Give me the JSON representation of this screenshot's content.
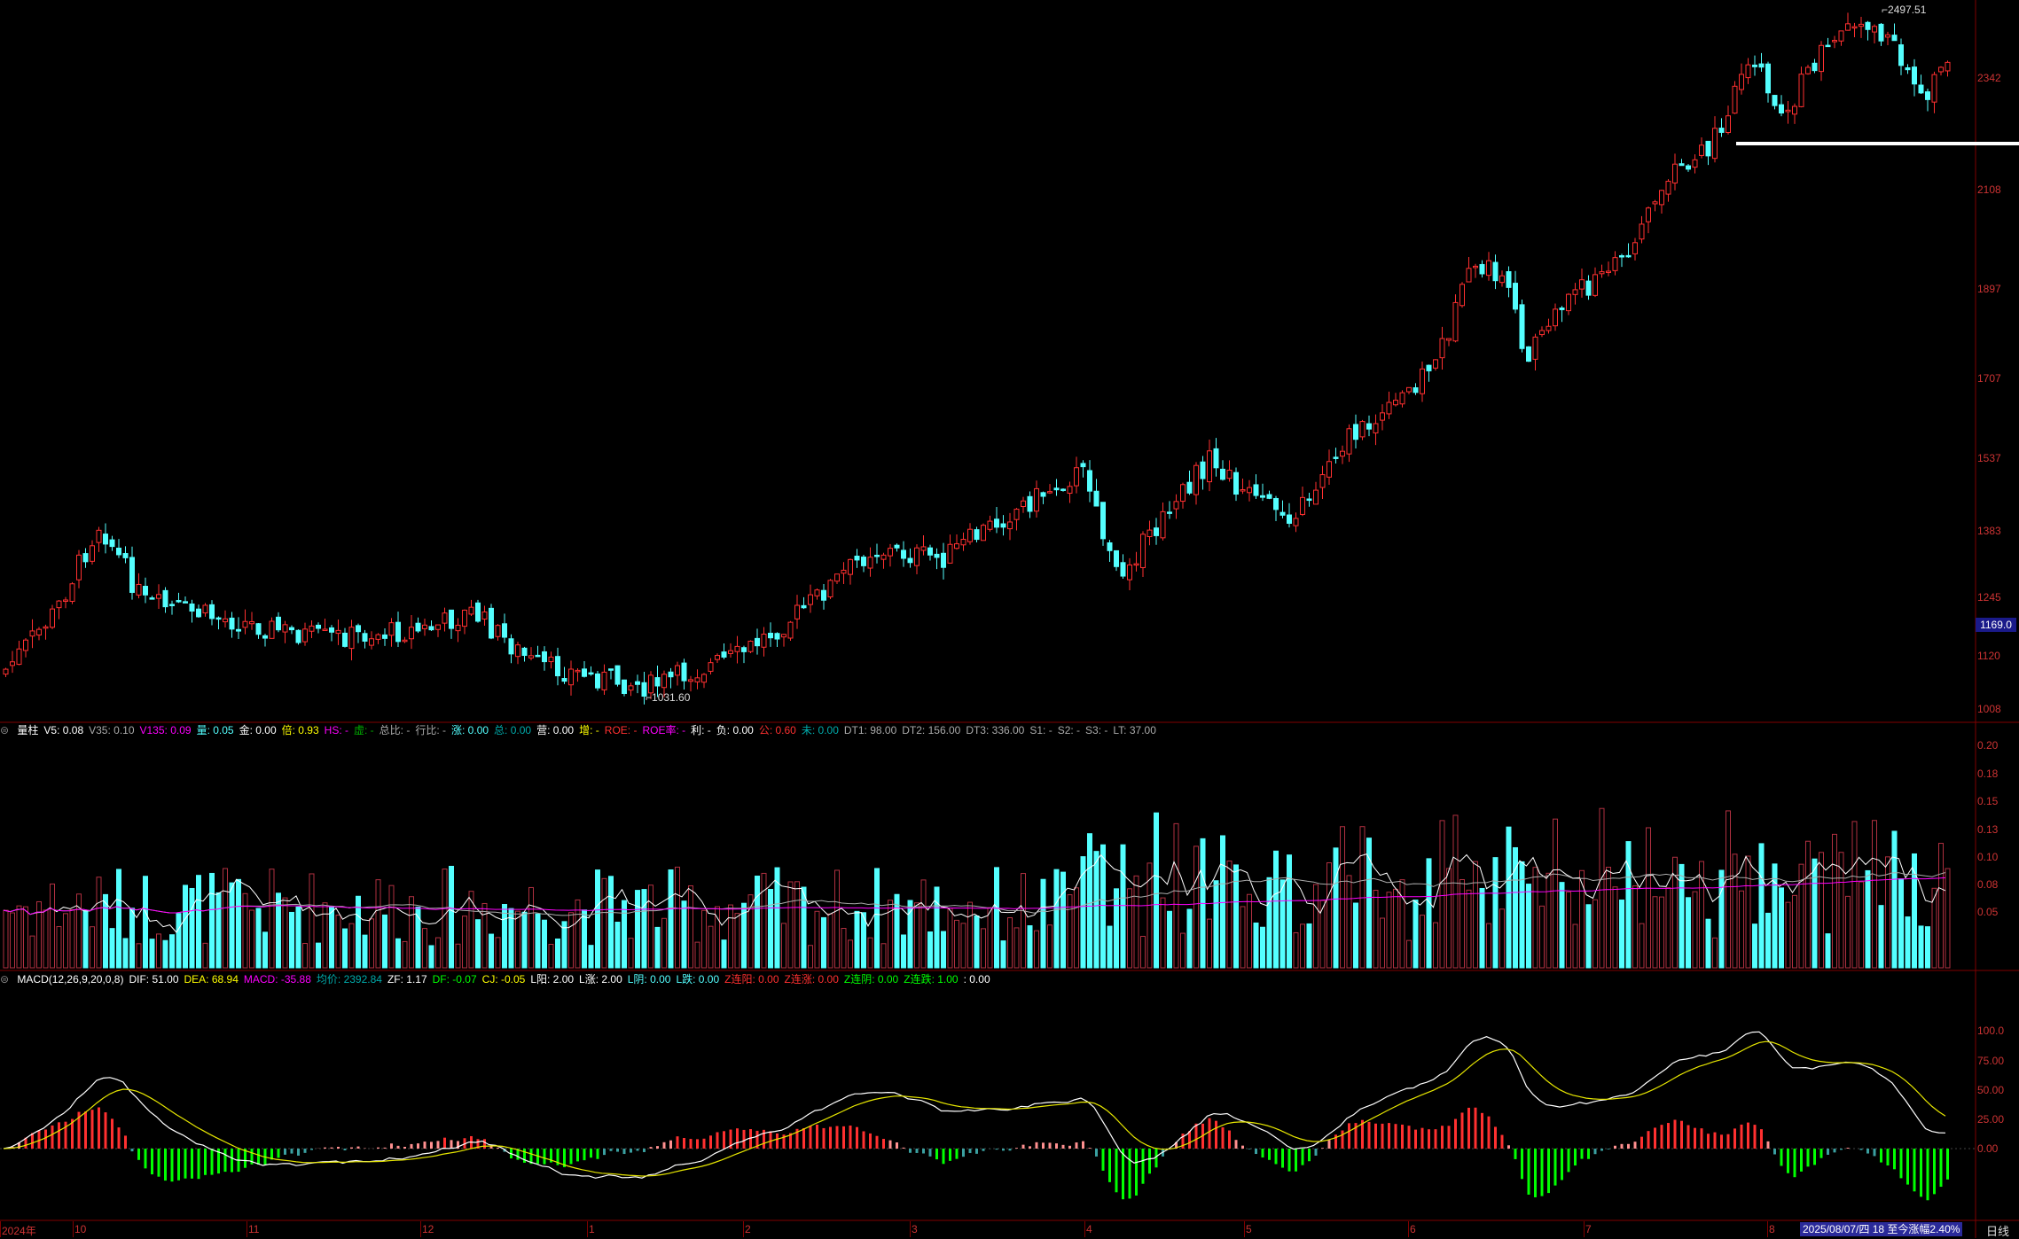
{
  "colors": {
    "up": "#ff3030",
    "down": "#54ffff",
    "ma_white": "#ffffff",
    "ma_yellow": "#e6e600",
    "ma_magenta": "#ff00ff",
    "grid": "#800000",
    "axis_text": "#cc3333",
    "background": "#000000"
  },
  "price_panel": {
    "high_label": "2497.51",
    "low_label": "1031.60",
    "current_price_tag": "1169.0",
    "y_ticks": [
      "2342",
      "2108",
      "1897",
      "1707",
      "1537",
      "1383",
      "1245",
      "1120",
      "1008"
    ]
  },
  "volume_panel": {
    "indicator_items": [
      {
        "label": "量柱",
        "color": "#ffffff"
      },
      {
        "label": "V5: 0.08",
        "color": "#ffffff"
      },
      {
        "label": "V35: 0.10",
        "color": "#aaaaaa"
      },
      {
        "label": "V135: 0.09",
        "color": "#ff00ff"
      },
      {
        "label": "量: 0.05",
        "color": "#54ffff"
      },
      {
        "label": "金: 0.00",
        "color": "#ffffff"
      },
      {
        "label": "倍: 0.93",
        "color": "#ffff00"
      },
      {
        "label": "HS: -",
        "color": "#ff00ff"
      },
      {
        "label": "虚: -",
        "color": "#00aa00"
      },
      {
        "label": "总比: -",
        "color": "#aaaaaa"
      },
      {
        "label": "行比: -",
        "color": "#aaaaaa"
      },
      {
        "label": "涨: 0.00",
        "color": "#54ffff"
      },
      {
        "label": "总: 0.00",
        "color": "#00aaaa"
      },
      {
        "label": "营: 0.00",
        "color": "#ffffff"
      },
      {
        "label": "增: -",
        "color": "#ffff00"
      },
      {
        "label": "ROE: -",
        "color": "#ff3030"
      },
      {
        "label": "ROE率: -",
        "color": "#ff00ff"
      },
      {
        "label": "利: -",
        "color": "#ffffff"
      },
      {
        "label": "负: 0.00",
        "color": "#ffffff"
      },
      {
        "label": "公: 0.60",
        "color": "#ff3030"
      },
      {
        "label": "未: 0.00",
        "color": "#00aaaa"
      },
      {
        "label": "DT1: 98.00",
        "color": "#aaaaaa"
      },
      {
        "label": "DT2: 156.00",
        "color": "#aaaaaa"
      },
      {
        "label": "DT3: 336.00",
        "color": "#aaaaaa"
      },
      {
        "label": "S1: -",
        "color": "#aaaaaa"
      },
      {
        "label": "S2: -",
        "color": "#aaaaaa"
      },
      {
        "label": "S3: -",
        "color": "#aaaaaa"
      },
      {
        "label": "LT: 37.00",
        "color": "#aaaaaa"
      }
    ],
    "y_ticks": [
      "0.20",
      "0.18",
      "0.15",
      "0.13",
      "0.10",
      "0.08",
      "0.05"
    ]
  },
  "macd_panel": {
    "indicator_items": [
      {
        "label": "MACD(12,26,9,20,0,8)",
        "color": "#ffffff"
      },
      {
        "label": "DIF: 51.00",
        "color": "#ffffff"
      },
      {
        "label": "DEA: 68.94",
        "color": "#ffff00"
      },
      {
        "label": "MACD: -35.88",
        "color": "#ff00ff"
      },
      {
        "label": "均价: 2392.84",
        "color": "#00aaaa"
      },
      {
        "label": "ZF: 1.17",
        "color": "#ffffff"
      },
      {
        "label": "DF: -0.07",
        "color": "#00ff00"
      },
      {
        "label": "CJ: -0.05",
        "color": "#ffff00"
      },
      {
        "label": "L阳: 2.00",
        "color": "#ffffff"
      },
      {
        "label": "L涨: 2.00",
        "color": "#ffffff"
      },
      {
        "label": "L阴: 0.00",
        "color": "#54ffff"
      },
      {
        "label": "L跌: 0.00",
        "color": "#54ffff"
      },
      {
        "label": "Z连阳: 0.00",
        "color": "#ff3030"
      },
      {
        "label": "Z连涨: 0.00",
        "color": "#ff3030"
      },
      {
        "label": "Z连阴: 0.00",
        "color": "#00ff00"
      },
      {
        "label": "Z连跌: 1.00",
        "color": "#00ff00"
      },
      {
        "label": ": 0.00",
        "color": "#ffffff"
      }
    ],
    "y_ticks": [
      "100.0",
      "75.00",
      "50.00",
      "25.00",
      "0.00"
    ]
  },
  "time_axis": {
    "labels": [
      "2024年",
      "10",
      "11",
      "12",
      "1",
      "2",
      "3",
      "4",
      "5",
      "6",
      "7",
      "8"
    ],
    "status_text": "2025/08/07/四 18 至今涨幅2.40%",
    "period_button": "日线"
  }
}
